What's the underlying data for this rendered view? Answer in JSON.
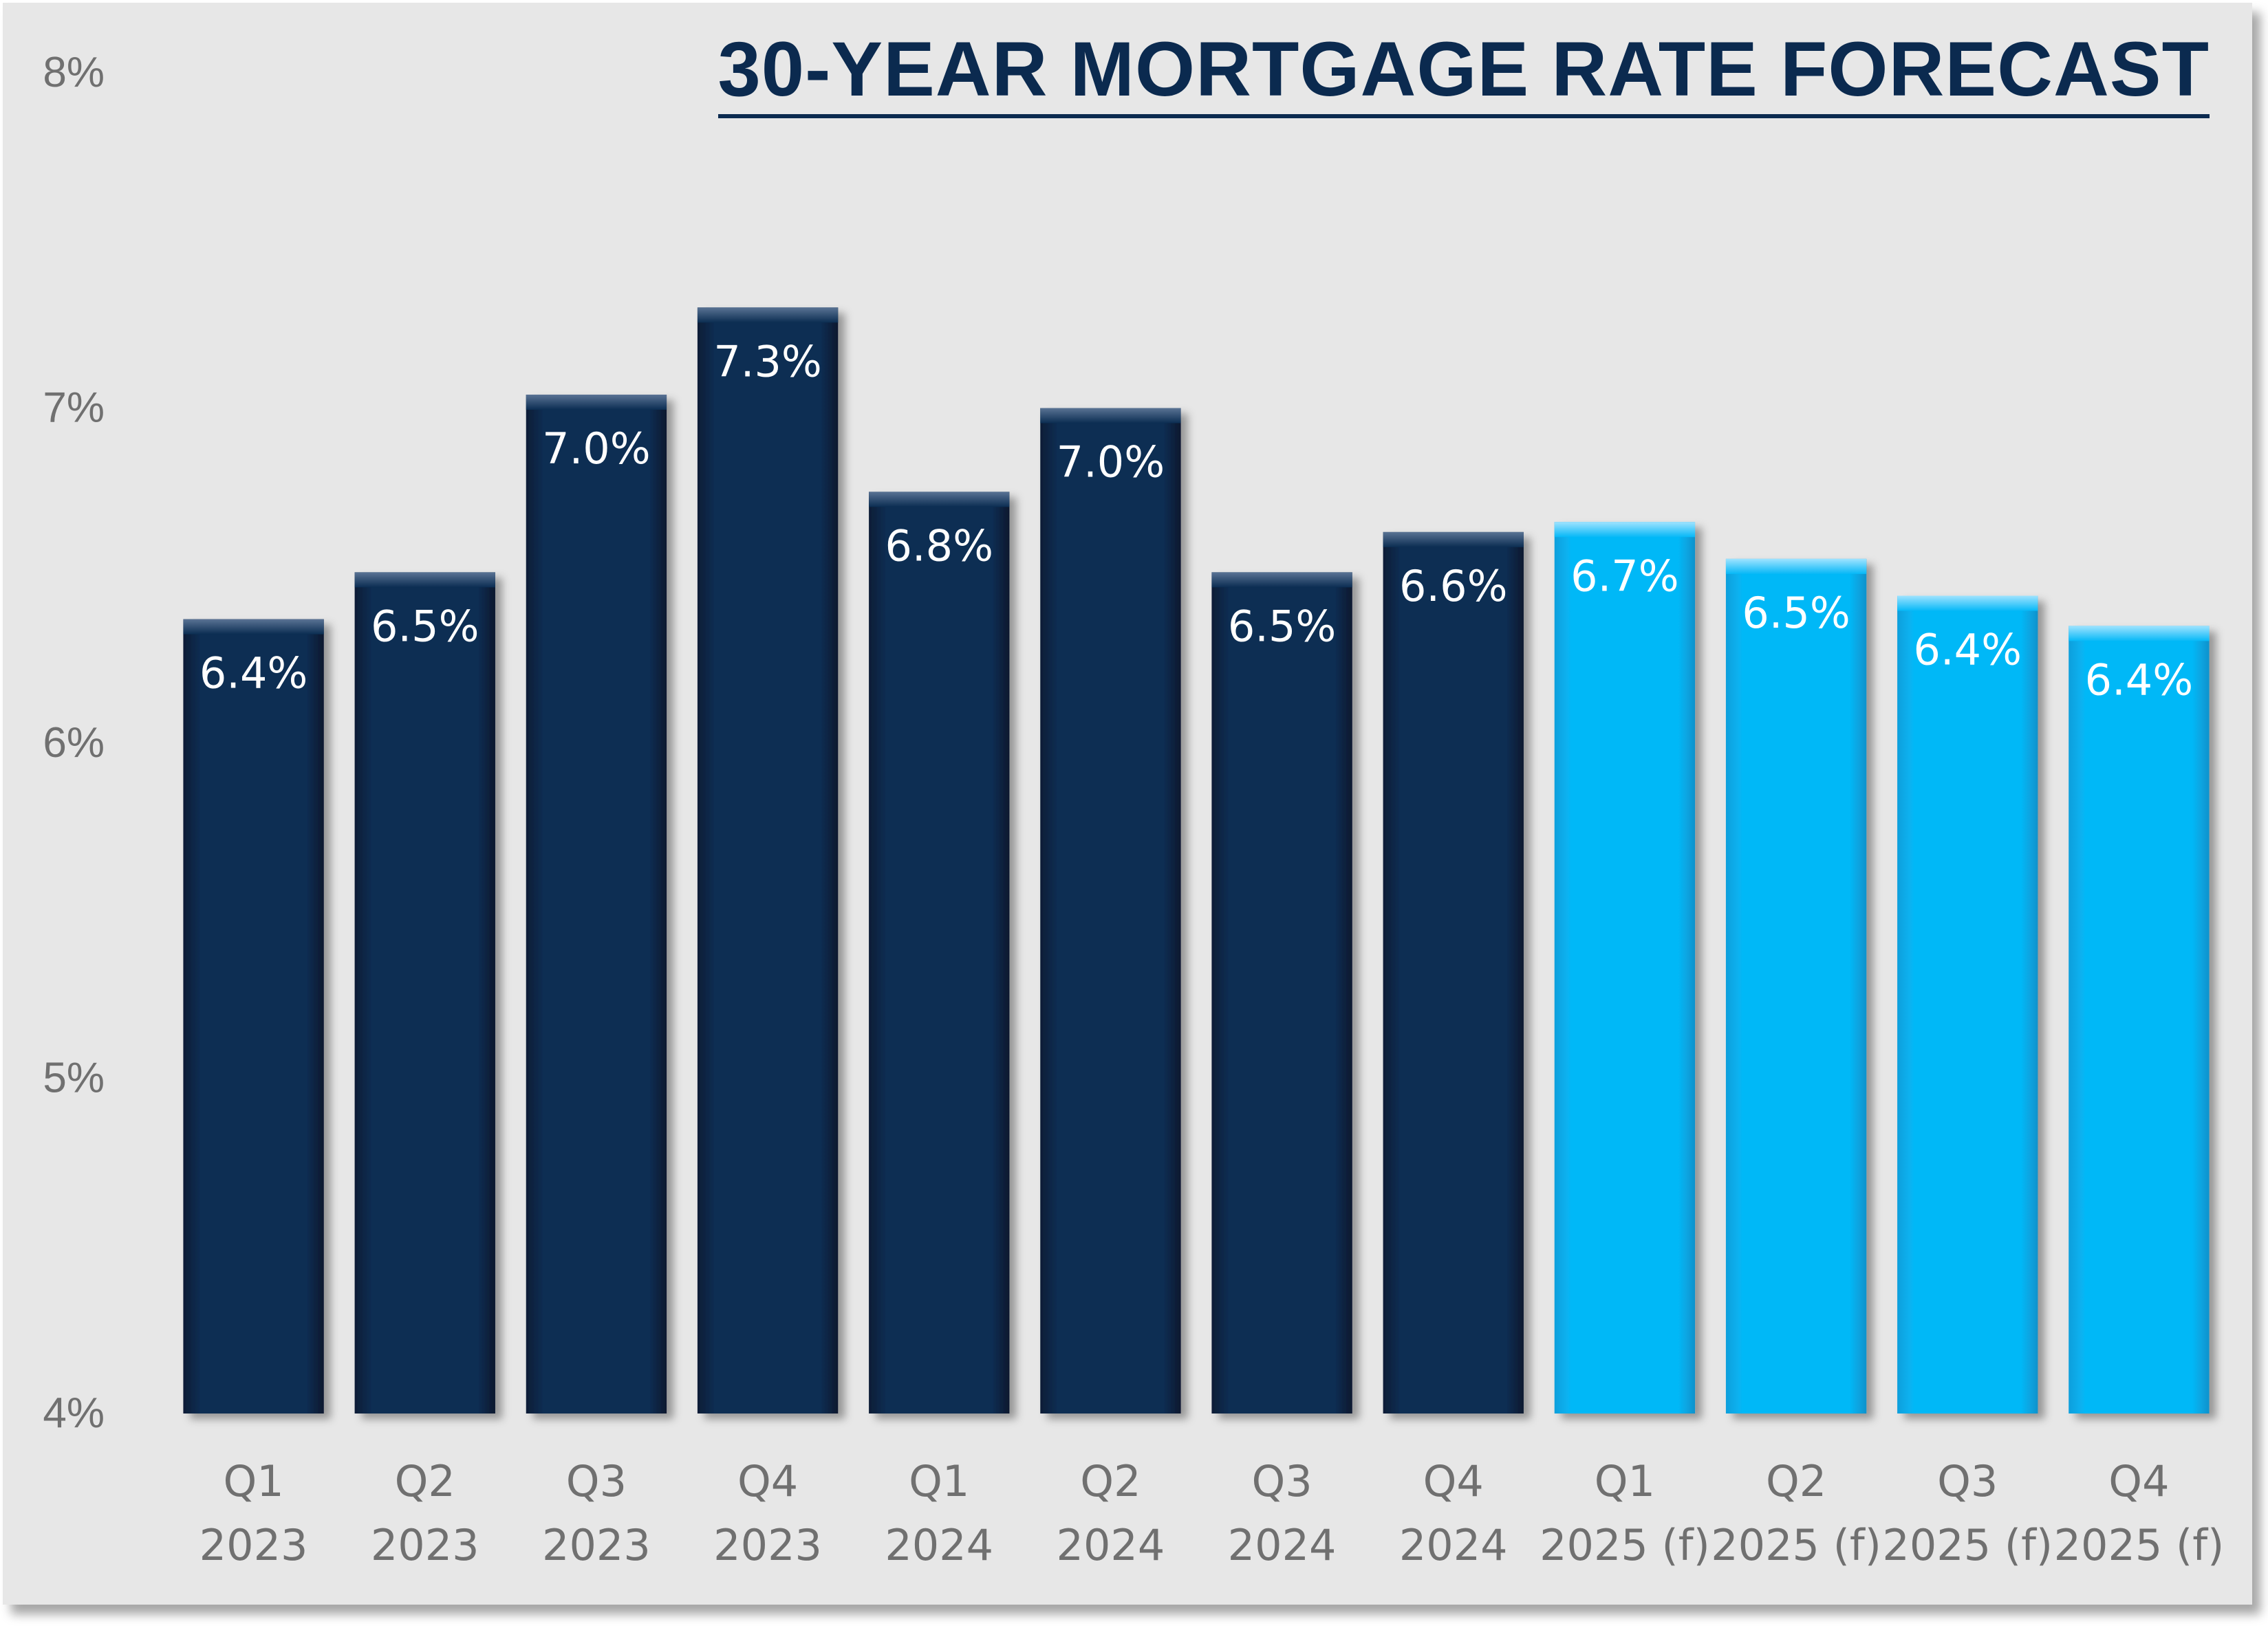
{
  "chart_data": {
    "type": "bar",
    "title": "30-YEAR MORTGAGE RATE FORECAST",
    "categories": [
      [
        "Q1",
        "2023"
      ],
      [
        "Q2",
        "2023"
      ],
      [
        "Q3",
        "2023"
      ],
      [
        "Q4",
        "2023"
      ],
      [
        "Q1",
        "2024"
      ],
      [
        "Q2",
        "2024"
      ],
      [
        "Q3",
        "2024"
      ],
      [
        "Q4",
        "2024"
      ],
      [
        "Q1",
        "2025 (f)"
      ],
      [
        "Q2",
        "2025 (f)"
      ],
      [
        "Q3",
        "2025 (f)"
      ],
      [
        "Q4",
        "2025 (f)"
      ]
    ],
    "values": [
      6.37,
      6.51,
      7.04,
      7.3,
      6.75,
      7.0,
      6.51,
      6.63,
      6.66,
      6.55,
      6.44,
      6.35
    ],
    "data_labels": [
      "6.4%",
      "6.5%",
      "7.0%",
      "7.3%",
      "6.8%",
      "7.0%",
      "6.5%",
      "6.6%",
      "6.7%",
      "6.5%",
      "6.4%",
      "6.4%"
    ],
    "forecast": [
      false,
      false,
      false,
      false,
      false,
      false,
      false,
      false,
      true,
      true,
      true,
      true
    ],
    "ylim": [
      4,
      8
    ],
    "yticks": [
      4,
      5,
      6,
      7,
      8
    ],
    "ytick_labels": [
      "4%",
      "5%",
      "6%",
      "7%",
      "8%"
    ],
    "xlabel": "",
    "ylabel": "",
    "grid": false,
    "colors": {
      "historical": "#0b2d52",
      "forecast": "#05b5f5",
      "background": "#e7e7e7",
      "title": "#0b2a4f"
    }
  }
}
